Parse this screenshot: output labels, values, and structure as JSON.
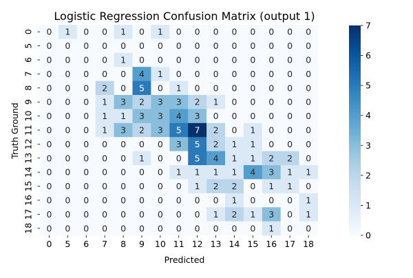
{
  "chart_data": {
    "type": "heatmap",
    "title": "Logistic Regression Confusion Matrix (output 1)",
    "xlabel": "Predicted",
    "ylabel": "Truth Ground",
    "row_labels": [
      "0",
      "5",
      "6",
      "7",
      "8",
      "9",
      "10",
      "11",
      "12",
      "13",
      "14",
      "15",
      "16",
      "17",
      "18"
    ],
    "col_labels": [
      "0",
      "5",
      "6",
      "7",
      "8",
      "9",
      "10",
      "11",
      "12",
      "13",
      "14",
      "15",
      "16",
      "17",
      "18"
    ],
    "values": [
      [
        0,
        1,
        0,
        0,
        1,
        0,
        1,
        0,
        0,
        0,
        0,
        0,
        0,
        0,
        0
      ],
      [
        0,
        0,
        0,
        0,
        0,
        0,
        0,
        0,
        0,
        0,
        0,
        0,
        0,
        0,
        0
      ],
      [
        0,
        0,
        0,
        0,
        1,
        0,
        0,
        0,
        0,
        0,
        0,
        0,
        0,
        0,
        0
      ],
      [
        0,
        0,
        0,
        0,
        0,
        4,
        1,
        0,
        0,
        0,
        0,
        0,
        0,
        0,
        0
      ],
      [
        0,
        0,
        0,
        2,
        0,
        5,
        0,
        1,
        0,
        0,
        0,
        0,
        0,
        0,
        0
      ],
      [
        0,
        0,
        0,
        1,
        3,
        2,
        3,
        3,
        2,
        1,
        0,
        0,
        0,
        0,
        0
      ],
      [
        0,
        0,
        0,
        1,
        1,
        3,
        3,
        4,
        3,
        0,
        0,
        0,
        0,
        0,
        0
      ],
      [
        0,
        0,
        0,
        1,
        3,
        2,
        3,
        5,
        7,
        2,
        0,
        1,
        0,
        0,
        0
      ],
      [
        0,
        0,
        0,
        0,
        0,
        0,
        0,
        3,
        5,
        2,
        1,
        1,
        0,
        0,
        0
      ],
      [
        0,
        0,
        0,
        0,
        0,
        1,
        0,
        0,
        5,
        4,
        1,
        1,
        2,
        2,
        0
      ],
      [
        0,
        0,
        0,
        0,
        0,
        0,
        0,
        1,
        1,
        1,
        1,
        4,
        3,
        1,
        1
      ],
      [
        0,
        0,
        0,
        0,
        0,
        0,
        0,
        0,
        1,
        2,
        2,
        0,
        1,
        1,
        0
      ],
      [
        0,
        0,
        0,
        0,
        0,
        0,
        0,
        0,
        0,
        0,
        1,
        0,
        0,
        0,
        1
      ],
      [
        0,
        0,
        0,
        0,
        0,
        0,
        0,
        0,
        0,
        1,
        2,
        1,
        3,
        0,
        1
      ],
      [
        0,
        0,
        0,
        0,
        0,
        0,
        0,
        0,
        0,
        0,
        0,
        0,
        1,
        0,
        0
      ]
    ],
    "vmin": 0,
    "vmax": 7,
    "colormap": "Blues",
    "colorbar_ticks": [
      0,
      1,
      2,
      3,
      4,
      5,
      6,
      7
    ]
  }
}
